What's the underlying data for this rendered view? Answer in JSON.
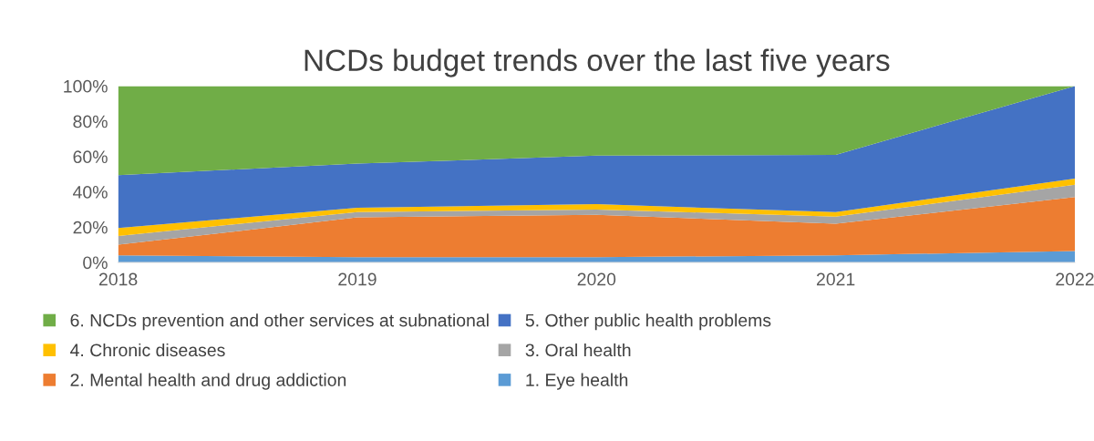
{
  "chart_data": {
    "type": "area",
    "stacked": true,
    "title": "NCDs budget trends over the last five years",
    "x": [
      2018,
      2019,
      2020,
      2021,
      2022
    ],
    "xlim": [
      2018,
      2022
    ],
    "xticks": [
      2018,
      2019,
      2020,
      2021,
      2022
    ],
    "ylim": [
      0,
      100
    ],
    "yticks": [
      {
        "value": 0,
        "label": "0%"
      },
      {
        "value": 20,
        "label": "20%"
      },
      {
        "value": 40,
        "label": "40%"
      },
      {
        "value": 60,
        "label": "60%"
      },
      {
        "value": 80,
        "label": "80%"
      },
      {
        "value": 100,
        "label": "100%"
      }
    ],
    "grid": false,
    "legend": "bottom",
    "series": [
      {
        "name": "1. Eye health",
        "color": "#5b9bd5",
        "values": [
          4,
          3,
          3,
          4,
          6.5
        ]
      },
      {
        "name": "2. Mental health and drug addiction",
        "color": "#ed7d31",
        "values": [
          6,
          22.5,
          24,
          18,
          30.5
        ]
      },
      {
        "name": "3. Oral health",
        "color": "#a5a5a5",
        "values": [
          5,
          3,
          3,
          4,
          7
        ]
      },
      {
        "name": "4. Chronic diseases",
        "color": "#ffc000",
        "values": [
          4.5,
          2.5,
          3,
          2.5,
          3.5
        ]
      },
      {
        "name": "5. Other public health problems",
        "color": "#4472c4",
        "values": [
          30,
          25,
          27.5,
          32.5,
          52.5
        ]
      },
      {
        "name": "6. NCDs prevention and other services at subnational",
        "color": "#70ad47",
        "values": [
          50.5,
          44,
          39.5,
          39,
          0
        ]
      }
    ]
  }
}
